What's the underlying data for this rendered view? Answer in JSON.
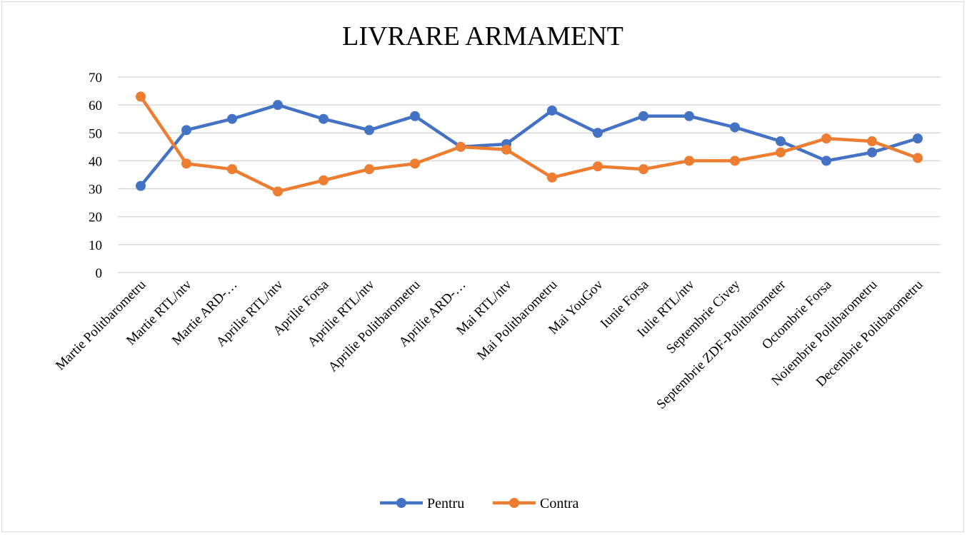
{
  "chart_data": {
    "type": "line",
    "title": "LIVRARE ARMAMENT",
    "xlabel": "",
    "ylabel": "",
    "ylim": [
      0,
      70
    ],
    "yticks": [
      0,
      10,
      20,
      30,
      40,
      50,
      60,
      70
    ],
    "grid": true,
    "legend_position": "bottom",
    "categories": [
      "Martie Politbarometru",
      "Martie RTL/ntv",
      "Martie ARD-…",
      "Aprilie RTL/ntv",
      "Aprilie Forsa",
      "Aprilie RTL/ntv",
      "Aprilie Politbarometru",
      "Aprilie ARD-…",
      "Mai RTL/ntv",
      "Mai Politbarometru",
      "Mai YouGov",
      "Iunie Forsa",
      "Iulie RTL/ntv",
      "Septembrie Civey",
      "Septembrie ZDF-Politbarometer",
      "Octombrie Forsa",
      "Noiembrie Politbarometru",
      "Decembrie Politbarometru"
    ],
    "series": [
      {
        "name": "Pentru",
        "color": "#4472c4",
        "values": [
          31,
          51,
          55,
          60,
          55,
          51,
          56,
          45,
          46,
          58,
          50,
          56,
          56,
          52,
          47,
          40,
          43,
          48
        ]
      },
      {
        "name": "Contra",
        "color": "#ed7d31",
        "values": [
          63,
          39,
          37,
          29,
          33,
          37,
          39,
          45,
          44,
          34,
          38,
          37,
          40,
          40,
          43,
          48,
          47,
          41
        ]
      }
    ]
  }
}
